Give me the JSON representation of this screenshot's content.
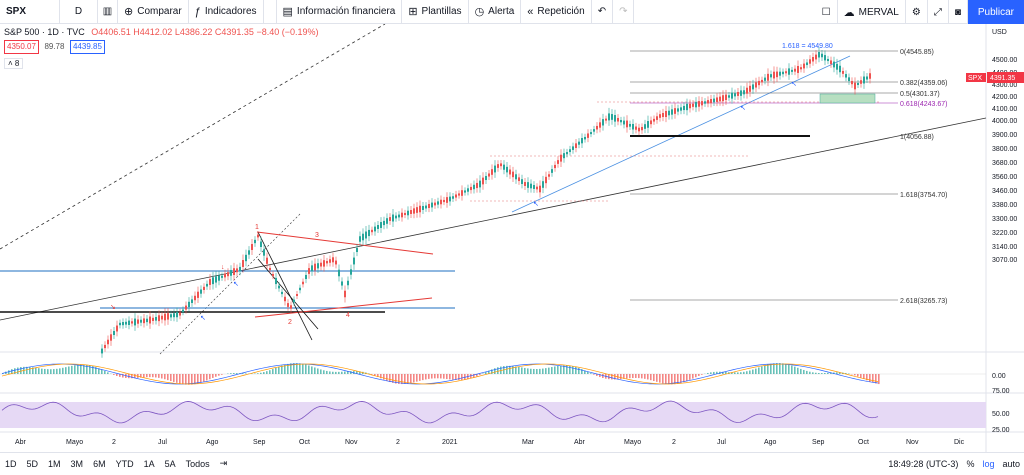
{
  "toolbar": {
    "symbol": "SPX",
    "interval": "D",
    "compare": "Comparar",
    "indicators": "Indicadores",
    "financials": "Información financiera",
    "templates": "Plantillas",
    "alert": "Alerta",
    "replay": "Repetición",
    "layout_name": "MERVAL",
    "publish": "Publicar"
  },
  "legend": {
    "title": "S&P 500 · 1D · TVC",
    "open": "O4406.51",
    "high": "H4412.02",
    "low": "L4386.22",
    "close": "C4391.35",
    "change": "−8.40 (−0.19%)",
    "sell_price": "4350.07",
    "spread": "89.78",
    "buy_price": "4439.85",
    "collapsed_count": "8"
  },
  "price_scale": {
    "currency": "USD",
    "ticks": [
      "4500.00",
      "4400.00",
      "4300.00",
      "4200.00",
      "4100.00",
      "4000.00",
      "3900.00",
      "3800.00",
      "3680.00",
      "3560.00",
      "3460.00",
      "3380.00",
      "3300.00",
      "3220.00",
      "3140.00",
      "3070.00"
    ],
    "last_symbol": "SPX",
    "last_price": "4391.35",
    "macd_zero": "0.00",
    "rsi_ticks": [
      "75.00",
      "50.00",
      "25.00"
    ]
  },
  "time_axis": [
    "Abr",
    "Mayo",
    "2",
    "Jul",
    "Ago",
    "Sep",
    "Oct",
    "Nov",
    "2",
    "2021",
    "Mar",
    "Abr",
    "Mayo",
    "2",
    "Jul",
    "Ago",
    "Sep",
    "Oct",
    "Nov",
    "Dic"
  ],
  "fib_labels": {
    "target": "1.618 = 4549.80",
    "f0": "0(4545.85)",
    "f382": "0.382(4359.06)",
    "f5": "0.5(4301.37)",
    "f618": "0.618(4243.67)",
    "f1": "1(4056.88)",
    "f1618": "1.618(3754.70)",
    "f2618": "2.618(3265.73)"
  },
  "wave_labels": [
    "1",
    "3",
    "2",
    "4"
  ],
  "bottom": {
    "ranges": [
      "1D",
      "5D",
      "1M",
      "3M",
      "6M",
      "YTD",
      "1A",
      "5A",
      "Todos"
    ],
    "time": "18:49:28 (UTC-3)",
    "percent": "%",
    "log": "log",
    "auto": "auto"
  },
  "colors": {
    "accent": "#2962ff",
    "up": "#26a69a",
    "down": "#ef5350",
    "fib_magenta": "#9c27b0",
    "rsi_fill": "#e6d9f5"
  }
}
